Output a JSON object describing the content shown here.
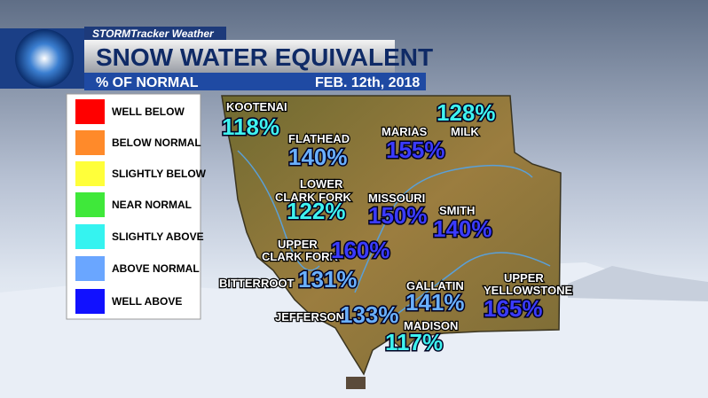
{
  "header": {
    "brand": "STORMTracker Weather",
    "title": "SNOW WATER EQUIVALENT",
    "subtitle": "% OF NORMAL",
    "date": "FEB. 12th, 2018"
  },
  "legend": [
    "WELL BELOW",
    "BELOW NORMAL",
    "SLIGHTLY BELOW",
    "NEAR NORMAL",
    "SLIGHTLY ABOVE",
    "ABOVE NORMAL",
    "WELL ABOVE"
  ],
  "basins": [
    {
      "name": [
        "KOOTENAI"
      ],
      "value": "118%"
    },
    {
      "name": [
        "FLATHEAD"
      ],
      "value": "140%"
    },
    {
      "name": [
        "MARIAS"
      ],
      "value": "155%"
    },
    {
      "name": [
        "MILK"
      ],
      "value": "128%"
    },
    {
      "name": [
        "LOWER",
        "CLARK FORK"
      ],
      "value": "122%"
    },
    {
      "name": [
        "MISSOURI"
      ],
      "value": "150%"
    },
    {
      "name": [
        "SMITH"
      ],
      "value": "140%"
    },
    {
      "name": [
        "UPPER",
        "CLARK FORK"
      ],
      "value": "160%"
    },
    {
      "name": [
        "BITTERROOT"
      ],
      "value": "131%"
    },
    {
      "name": [
        "GALLATIN"
      ],
      "value": "141%"
    },
    {
      "name": [
        "UPPER",
        "YELLOWSTONE"
      ],
      "value": "165%"
    },
    {
      "name": [
        "JEFFERSON"
      ],
      "value": "133%"
    },
    {
      "name": [
        "MADISON"
      ],
      "value": "117%"
    }
  ]
}
